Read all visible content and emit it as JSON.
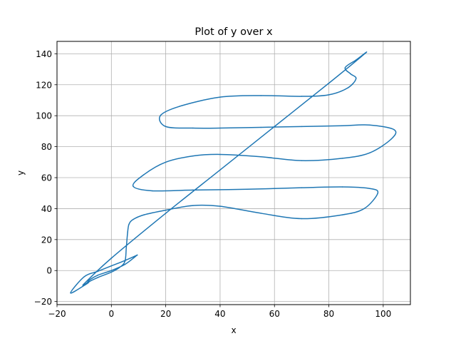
{
  "chart_data": {
    "type": "line",
    "title": "Plot of y over x",
    "xlabel": "x",
    "ylabel": "y",
    "xlim": [
      -20,
      110
    ],
    "ylim": [
      -22,
      148
    ],
    "xticks": [
      -20,
      0,
      20,
      40,
      60,
      80,
      100
    ],
    "yticks": [
      -20,
      0,
      20,
      40,
      60,
      80,
      100,
      120,
      140
    ],
    "xtick_labels": [
      "−20",
      "0",
      "20",
      "40",
      "60",
      "80",
      "100"
    ],
    "ytick_labels": [
      "−20",
      "0",
      "20",
      "40",
      "60",
      "80",
      "100",
      "120",
      "140"
    ],
    "grid": true,
    "line_color": "#1f77b4",
    "series": [
      {
        "x": [
          9.5,
          5,
          0,
          -5,
          -10,
          -15,
          -9,
          -8,
          -5,
          0,
          3,
          5,
          5.5,
          6,
          6.5,
          8,
          12,
          20,
          30,
          40,
          55,
          70,
          85,
          93,
          98,
          95,
          85,
          70,
          50,
          30,
          15,
          8,
          12,
          20,
          30,
          40,
          55,
          70,
          85,
          95,
          103,
          104,
          95,
          85,
          70,
          55,
          40,
          30,
          20,
          18,
          25,
          40,
          55,
          70,
          80,
          87,
          90,
          88,
          86,
          90,
          93.5,
          80,
          60,
          40,
          20,
          0,
          -10,
          -9,
          -8,
          -5,
          0,
          5,
          9.5
        ],
        "y": [
          10,
          6.5,
          3,
          -0.5,
          -4,
          -14.5,
          -8.5,
          -7,
          -4.5,
          -1,
          2,
          6,
          15,
          25,
          30,
          33,
          36,
          39,
          42,
          41.5,
          37,
          33.5,
          36,
          40,
          50,
          53,
          54,
          53.5,
          52.5,
          52,
          51.5,
          54.5,
          62,
          70,
          74,
          75,
          73.5,
          71,
          72.5,
          76,
          85,
          91,
          94,
          93.5,
          93,
          92.5,
          92,
          92,
          93,
          100,
          106,
          112,
          113,
          112.5,
          113.5,
          118,
          124,
          127,
          131,
          136,
          140.5,
          121,
          93,
          65,
          37,
          8,
          -8.5,
          -8,
          -6,
          -3,
          0,
          4,
          10
        ]
      }
    ]
  }
}
